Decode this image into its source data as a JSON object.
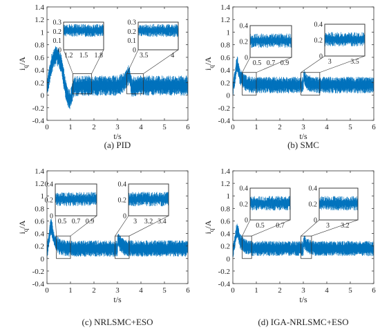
{
  "chart_data": [
    {
      "type": "line",
      "caption": "(a) PID",
      "xlabel": "t/s",
      "ylabel_main": "i",
      "ylabel_sub": "q",
      "ylabel_unit": "/A",
      "xlim": [
        0,
        6
      ],
      "ylim": [
        -0.4,
        1.4
      ],
      "xticks": [
        0,
        1,
        2,
        3,
        4,
        5,
        6
      ],
      "yticks": [
        -0.4,
        -0.2,
        0,
        0.2,
        0.4,
        0.6,
        0.8,
        1,
        1.2,
        1.4
      ],
      "color": "#0072BD",
      "noise_amplitude": 0.16,
      "x": [
        0,
        0.1,
        0.2,
        0.3,
        0.4,
        0.5,
        0.6,
        0.7,
        0.8,
        0.9,
        1.0,
        1.05,
        1.1,
        1.2,
        1.5,
        2.0,
        2.5,
        3.0,
        3.3,
        3.4,
        3.5,
        3.55,
        3.6,
        3.7,
        4.0,
        4.5,
        5.0,
        5.5,
        6.0
      ],
      "y": [
        0.1,
        0.3,
        0.5,
        0.6,
        0.63,
        0.6,
        0.5,
        0.3,
        0.08,
        -0.05,
        -0.08,
        0.0,
        0.08,
        0.14,
        0.15,
        0.15,
        0.15,
        0.15,
        0.2,
        0.28,
        0.33,
        0.25,
        0.12,
        0.14,
        0.15,
        0.15,
        0.15,
        0.15,
        0.15
      ],
      "zooms": [
        {
          "x_range": [
            1.1,
            1.9
          ],
          "y_range": [
            0,
            0.3
          ],
          "xticks": [
            1.2,
            1.5,
            1.8
          ],
          "xtick_labels": [
            "1.2",
            "1.5",
            "1.8"
          ],
          "yticks": [
            0,
            0.1,
            0.2,
            0.3
          ],
          "ytick_labels": [
            "0",
            "0.1",
            "0.2",
            "0.3"
          ],
          "band": [
            0.14,
            0.28
          ]
        },
        {
          "x_range": [
            3.4,
            4.1
          ],
          "y_range": [
            0,
            0.3
          ],
          "xticks": [
            3.5,
            4
          ],
          "xtick_labels": [
            "3.5",
            "4"
          ],
          "yticks": [
            0,
            0.1,
            0.2,
            0.3
          ],
          "ytick_labels": [
            "0",
            "0.1",
            "0.2",
            "0.3"
          ],
          "band": [
            0.14,
            0.28
          ]
        }
      ]
    },
    {
      "type": "line",
      "caption": "(b) SMC",
      "xlabel": "t/s",
      "ylabel_main": "i",
      "ylabel_sub": "q",
      "ylabel_unit": "/A",
      "xlim": [
        0,
        6
      ],
      "ylim": [
        -0.4,
        1.4
      ],
      "xticks": [
        0,
        1,
        2,
        3,
        4,
        5,
        6
      ],
      "yticks": [
        -0.4,
        -0.2,
        0,
        0.2,
        0.4,
        0.6,
        0.8,
        1,
        1.2,
        1.4
      ],
      "color": "#0072BD",
      "noise_amplitude": 0.13,
      "x": [
        0,
        0.1,
        0.15,
        0.2,
        0.3,
        0.5,
        0.8,
        1.0,
        2.0,
        3.0,
        3.02,
        3.1,
        3.3,
        3.6,
        4.0,
        5.0,
        6.0
      ],
      "y": [
        0.1,
        0.3,
        0.45,
        0.5,
        0.3,
        0.2,
        0.16,
        0.16,
        0.16,
        0.16,
        0.3,
        0.22,
        0.18,
        0.16,
        0.16,
        0.16,
        0.16
      ],
      "zooms": [
        {
          "x_range": [
            0.4,
            1.0
          ],
          "y_range": [
            0,
            0.4
          ],
          "xticks": [
            0.5,
            0.7,
            0.9
          ],
          "xtick_labels": [
            "0.5",
            "0.7",
            "0.9"
          ],
          "yticks": [
            0,
            0.2,
            0.4
          ],
          "ytick_labels": [
            "0",
            "0.2",
            "0.4"
          ],
          "band": [
            0.12,
            0.3
          ]
        },
        {
          "x_range": [
            2.9,
            3.7
          ],
          "y_range": [
            0,
            0.4
          ],
          "xticks": [
            3,
            3.5
          ],
          "xtick_labels": [
            "3",
            "3.5"
          ],
          "yticks": [
            0,
            0.2,
            0.4
          ],
          "ytick_labels": [
            "0",
            "0.2",
            "0.4"
          ],
          "band": [
            0.12,
            0.3
          ]
        }
      ]
    },
    {
      "type": "line",
      "caption": "(c) NRLSMC+ESO",
      "xlabel": "t/s",
      "ylabel_main": "i",
      "ylabel_sub": "q",
      "ylabel_unit": "/A",
      "xlim": [
        0,
        6
      ],
      "ylim": [
        -0.4,
        1.4
      ],
      "xticks": [
        0,
        1,
        2,
        3,
        4,
        5,
        6
      ],
      "yticks": [
        -0.4,
        -0.2,
        0,
        0.2,
        0.4,
        0.6,
        0.8,
        1,
        1.2,
        1.4
      ],
      "color": "#0072BD",
      "noise_amplitude": 0.13,
      "x": [
        0,
        0.1,
        0.15,
        0.2,
        0.3,
        0.5,
        0.8,
        1.0,
        2.0,
        3.0,
        3.02,
        3.1,
        3.3,
        3.5,
        4.0,
        5.0,
        6.0
      ],
      "y": [
        0.1,
        0.35,
        0.5,
        0.5,
        0.3,
        0.2,
        0.16,
        0.16,
        0.16,
        0.16,
        0.32,
        0.24,
        0.18,
        0.16,
        0.16,
        0.16,
        0.16
      ],
      "zooms": [
        {
          "x_range": [
            0.4,
            1.0
          ],
          "y_range": [
            0,
            0.4
          ],
          "xticks": [
            0.5,
            0.7,
            0.9
          ],
          "xtick_labels": [
            "0.5",
            "0.7",
            "0.9"
          ],
          "yticks": [
            0,
            0.2,
            0.4
          ],
          "ytick_labels": [
            "0",
            "0.2",
            "0.4"
          ],
          "band": [
            0.12,
            0.3
          ]
        },
        {
          "x_range": [
            2.9,
            3.5
          ],
          "y_range": [
            0,
            0.4
          ],
          "xticks": [
            3,
            3.2,
            3.4
          ],
          "xtick_labels": [
            "3",
            "3.2",
            "3.4"
          ],
          "yticks": [
            0,
            0.2,
            0.4
          ],
          "ytick_labels": [
            "0",
            "0.2",
            "0.4"
          ],
          "band": [
            0.12,
            0.3
          ]
        }
      ]
    },
    {
      "type": "line",
      "caption": "(d) IGA-NRLSMC+ESO",
      "xlabel": "t/s",
      "ylabel_main": "i",
      "ylabel_sub": "q",
      "ylabel_unit": "/A",
      "xlim": [
        0,
        6
      ],
      "ylim": [
        -0.4,
        1.4
      ],
      "xticks": [
        0,
        1,
        2,
        3,
        4,
        5,
        6
      ],
      "yticks": [
        -0.4,
        -0.2,
        0,
        0.2,
        0.4,
        0.6,
        0.8,
        1,
        1.2,
        1.4
      ],
      "color": "#0072BD",
      "noise_amplitude": 0.12,
      "x": [
        0,
        0.1,
        0.15,
        0.2,
        0.3,
        0.5,
        0.8,
        1.0,
        2.0,
        3.0,
        3.02,
        3.1,
        3.3,
        3.5,
        4.0,
        5.0,
        6.0
      ],
      "y": [
        0.1,
        0.3,
        0.42,
        0.45,
        0.28,
        0.2,
        0.16,
        0.16,
        0.16,
        0.16,
        0.28,
        0.22,
        0.18,
        0.16,
        0.16,
        0.16,
        0.16
      ],
      "zooms": [
        {
          "x_range": [
            0.4,
            0.8
          ],
          "y_range": [
            0,
            0.4
          ],
          "xticks": [
            0.5,
            0.7
          ],
          "xtick_labels": [
            "0.5",
            "0.7"
          ],
          "yticks": [
            0,
            0.2,
            0.4
          ],
          "ytick_labels": [
            "0",
            "0.2",
            "0.4"
          ],
          "band": [
            0.12,
            0.3
          ]
        },
        {
          "x_range": [
            2.9,
            3.35
          ],
          "y_range": [
            0,
            0.4
          ],
          "xticks": [
            3,
            3.2
          ],
          "xtick_labels": [
            "3",
            "3.2"
          ],
          "yticks": [
            0,
            0.2,
            0.4
          ],
          "ytick_labels": [
            "0",
            "0.2",
            "0.4"
          ],
          "band": [
            0.12,
            0.3
          ]
        }
      ]
    }
  ]
}
